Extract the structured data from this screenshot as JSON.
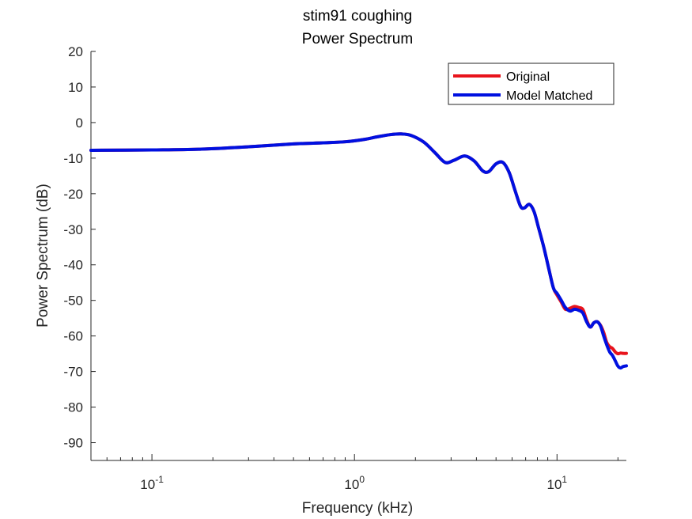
{
  "chart_data": {
    "type": "line",
    "title": "stim91 coughing",
    "subtitle": "Power Spectrum",
    "xlabel": "Frequency (kHz)",
    "ylabel": "Power Spectrum (dB)",
    "x_scale": "log",
    "xlim": [
      0.05,
      22
    ],
    "ylim": [
      -95,
      20
    ],
    "yticks": [
      20,
      10,
      0,
      -10,
      -20,
      -30,
      -40,
      -50,
      -60,
      -70,
      -80,
      -90
    ],
    "xticks": [
      {
        "value": 0.1,
        "base": "10",
        "exp": "-1"
      },
      {
        "value": 1,
        "base": "10",
        "exp": "0"
      },
      {
        "value": 10,
        "base": "10",
        "exp": "1"
      }
    ],
    "grid": false,
    "legend_position": "top-right",
    "series": [
      {
        "name": "Original",
        "color": "#e8141c",
        "x": [
          0.05,
          0.1,
          0.17,
          0.3,
          0.5,
          0.7,
          0.9,
          1.1,
          1.3,
          1.5,
          1.7,
          1.9,
          2.2,
          2.5,
          2.8,
          3.1,
          3.5,
          3.9,
          4.3,
          4.6,
          5.0,
          5.4,
          5.8,
          6.2,
          6.6,
          6.9,
          7.3,
          7.7,
          8.1,
          8.6,
          9.1,
          9.6,
          10.0,
          10.5,
          11.0,
          11.6,
          12.2,
          12.8,
          13.4,
          14.0,
          14.6,
          15.2,
          15.8,
          16.4,
          17.0,
          17.6,
          18.2,
          18.8,
          19.4,
          20.0,
          20.6,
          21.2,
          22.0
        ],
        "y": [
          -7.8,
          -7.7,
          -7.5,
          -6.8,
          -6.0,
          -5.7,
          -5.4,
          -4.8,
          -4.0,
          -3.4,
          -3.2,
          -3.6,
          -5.5,
          -8.5,
          -11.2,
          -10.6,
          -9.4,
          -10.8,
          -13.6,
          -13.8,
          -11.6,
          -11.2,
          -14.0,
          -19.0,
          -23.5,
          -24.0,
          -23.0,
          -25.0,
          -29.5,
          -35.0,
          -41.0,
          -46.5,
          -48.5,
          -50.5,
          -52.5,
          -52.2,
          -51.7,
          -52.0,
          -52.5,
          -55.5,
          -57.5,
          -56.3,
          -56.0,
          -57.0,
          -59.0,
          -61.8,
          -63.0,
          -63.5,
          -64.5,
          -65.0,
          -64.8,
          -64.9,
          -64.9
        ]
      },
      {
        "name": "Model Matched",
        "color": "#0010e0",
        "x": [
          0.05,
          0.1,
          0.17,
          0.3,
          0.5,
          0.7,
          0.9,
          1.1,
          1.3,
          1.5,
          1.7,
          1.9,
          2.2,
          2.5,
          2.8,
          3.1,
          3.5,
          3.9,
          4.3,
          4.6,
          5.0,
          5.4,
          5.8,
          6.2,
          6.6,
          6.9,
          7.3,
          7.7,
          8.1,
          8.6,
          9.1,
          9.6,
          10.0,
          10.5,
          11.0,
          11.6,
          12.2,
          12.8,
          13.4,
          14.0,
          14.6,
          15.2,
          15.8,
          16.4,
          17.0,
          17.6,
          18.2,
          18.8,
          19.4,
          20.0,
          20.6,
          21.2,
          22.0
        ],
        "y": [
          -7.8,
          -7.7,
          -7.5,
          -6.8,
          -6.0,
          -5.7,
          -5.4,
          -4.8,
          -4.0,
          -3.4,
          -3.2,
          -3.6,
          -5.5,
          -8.5,
          -11.2,
          -10.6,
          -9.4,
          -10.8,
          -13.6,
          -13.8,
          -11.6,
          -11.2,
          -14.0,
          -19.0,
          -23.5,
          -24.0,
          -23.0,
          -25.0,
          -29.5,
          -35.0,
          -41.0,
          -46.5,
          -48.0,
          -50.0,
          -52.0,
          -53.0,
          -52.5,
          -52.8,
          -53.5,
          -56.0,
          -57.5,
          -56.3,
          -56.0,
          -57.2,
          -60.0,
          -62.5,
          -64.5,
          -65.5,
          -67.0,
          -68.5,
          -69.0,
          -68.6,
          -68.4
        ]
      }
    ]
  }
}
